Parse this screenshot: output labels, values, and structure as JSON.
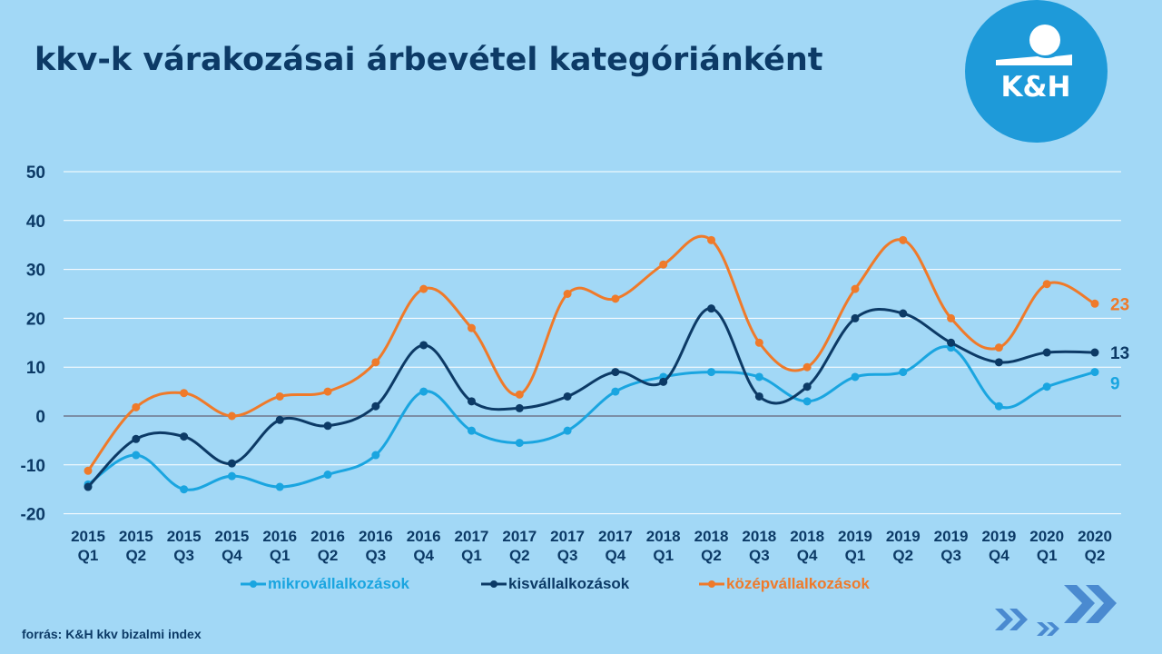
{
  "title": "kkv-k várakozásai árbevétel kategóriánként",
  "logo": {
    "text": "K&H",
    "bg_color": "#1e9ad9"
  },
  "source": "forrás: K&H kkv bizalmi index",
  "chart_data": {
    "type": "line",
    "title": "kkv-k várakozásai árbevétel kategóriánként",
    "xlabel": "",
    "ylabel": "",
    "ylim": [
      -20,
      50
    ],
    "yticks": [
      "50",
      "40",
      "30",
      "20",
      "10",
      "0",
      "-10",
      "-20"
    ],
    "ytick_values": [
      50,
      40,
      30,
      20,
      10,
      0,
      -10,
      -20
    ],
    "grid": true,
    "legend_position": "bottom",
    "categories": [
      [
        "2015",
        "Q1"
      ],
      [
        "2015",
        "Q2"
      ],
      [
        "2015",
        "Q3"
      ],
      [
        "2015",
        "Q4"
      ],
      [
        "2016",
        "Q1"
      ],
      [
        "2016",
        "Q2"
      ],
      [
        "2016",
        "Q3"
      ],
      [
        "2016",
        "Q4"
      ],
      [
        "2017",
        "Q1"
      ],
      [
        "2017",
        "Q2"
      ],
      [
        "2017",
        "Q3"
      ],
      [
        "2017",
        "Q4"
      ],
      [
        "2018",
        "Q1"
      ],
      [
        "2018",
        "Q2"
      ],
      [
        "2018",
        "Q3"
      ],
      [
        "2018",
        "Q4"
      ],
      [
        "2019",
        "Q1"
      ],
      [
        "2019",
        "Q2"
      ],
      [
        "2019",
        "Q3"
      ],
      [
        "2019",
        "Q4"
      ],
      [
        "2020",
        "Q1"
      ],
      [
        "2020",
        "Q2"
      ]
    ],
    "series": [
      {
        "name": "mikrovállalkozások",
        "color": "#1aa5e0",
        "end_label": "9",
        "values": [
          -14,
          -8,
          -15,
          -12.3,
          -14.5,
          -12,
          -8,
          5,
          -3,
          -5.5,
          -3,
          5,
          8,
          9,
          8,
          3,
          8,
          9,
          14,
          2,
          6,
          9
        ]
      },
      {
        "name": "kisvállalkozások",
        "color": "#0c3a66",
        "end_label": "13",
        "values": [
          -14.5,
          -4.7,
          -4.2,
          -9.7,
          -0.8,
          -2,
          2,
          14.5,
          3,
          1.6,
          4,
          9,
          7,
          22,
          4,
          6,
          20,
          21,
          15,
          11,
          13,
          13
        ]
      },
      {
        "name": "középvállalkozások",
        "color": "#ef7a2a",
        "end_label": "23",
        "values": [
          -11.2,
          1.8,
          4.7,
          0,
          4,
          5,
          11,
          26,
          18,
          4.4,
          25,
          24,
          31,
          36,
          15,
          10,
          26,
          36,
          20,
          14,
          27,
          23
        ]
      }
    ]
  }
}
